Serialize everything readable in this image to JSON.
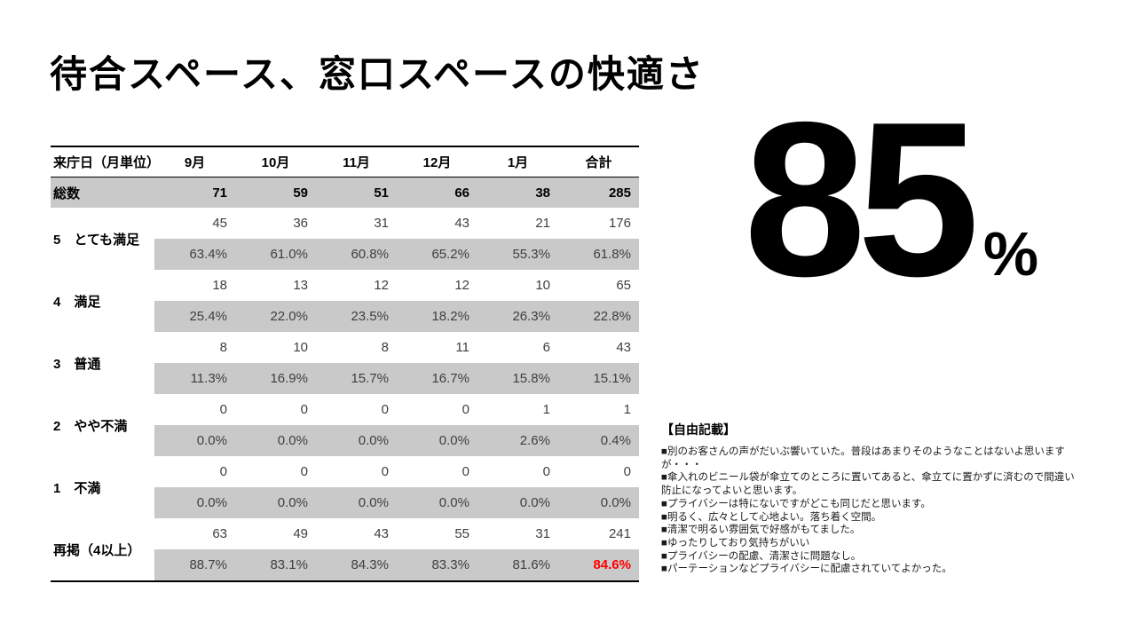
{
  "slide": {
    "title": "待合スペース、窓口スペースの快適さ",
    "headline": {
      "value": "85",
      "unit": "%"
    }
  },
  "table": {
    "header": [
      "来庁日（月単位）",
      "9月",
      "10月",
      "11月",
      "12月",
      "1月",
      "合計"
    ],
    "total": {
      "label": "総数",
      "values": [
        "71",
        "59",
        "51",
        "66",
        "38",
        "285"
      ]
    },
    "groups": [
      {
        "label": "5　とても満足",
        "counts": [
          "45",
          "36",
          "31",
          "43",
          "21",
          "176"
        ],
        "percents": [
          "63.4%",
          "61.0%",
          "60.8%",
          "65.2%",
          "55.3%",
          "61.8%"
        ]
      },
      {
        "label": "4　満足",
        "counts": [
          "18",
          "13",
          "12",
          "12",
          "10",
          "65"
        ],
        "percents": [
          "25.4%",
          "22.0%",
          "23.5%",
          "18.2%",
          "26.3%",
          "22.8%"
        ]
      },
      {
        "label": "3　普通",
        "counts": [
          "8",
          "10",
          "8",
          "11",
          "6",
          "43"
        ],
        "percents": [
          "11.3%",
          "16.9%",
          "15.7%",
          "16.7%",
          "15.8%",
          "15.1%"
        ]
      },
      {
        "label": "2　やや不満",
        "counts": [
          "0",
          "0",
          "0",
          "0",
          "1",
          "1"
        ],
        "percents": [
          "0.0%",
          "0.0%",
          "0.0%",
          "0.0%",
          "2.6%",
          "0.4%"
        ]
      },
      {
        "label": "1　不満",
        "counts": [
          "0",
          "0",
          "0",
          "0",
          "0",
          "0"
        ],
        "percents": [
          "0.0%",
          "0.0%",
          "0.0%",
          "0.0%",
          "0.0%",
          "0.0%"
        ]
      },
      {
        "label": "再掲（4以上）",
        "counts": [
          "63",
          "49",
          "43",
          "55",
          "31",
          "241"
        ],
        "percents": [
          "88.7%",
          "83.1%",
          "84.3%",
          "83.3%",
          "81.6%",
          "84.6%"
        ]
      }
    ]
  },
  "free_text": {
    "heading": "【自由記載】",
    "comments": [
      "■別のお客さんの声がだいぶ響いていた。普段はあまりそのようなことはないよ思いますが・・・",
      "■傘入れのビニール袋が傘立てのところに置いてあると、傘立てに置かずに済むので間違い防止になってよいと思います。",
      "■プライバシーは特にないですがどこも同じだと思います。",
      "■明るく、広々として心地よい。落ち着く空間。",
      "■清潔で明るい雰囲気で好感がもてました。",
      "■ゆったりしており気持ちがいい",
      "■プライバシーの配慮、清潔さに問題なし。",
      "■パーテーションなどプライバシーに配慮されていてよかった。"
    ]
  },
  "colors": {
    "row_band": "#C9C9C9",
    "highlight_red": "#FF0000",
    "muted_text": "#3F3F3F"
  }
}
